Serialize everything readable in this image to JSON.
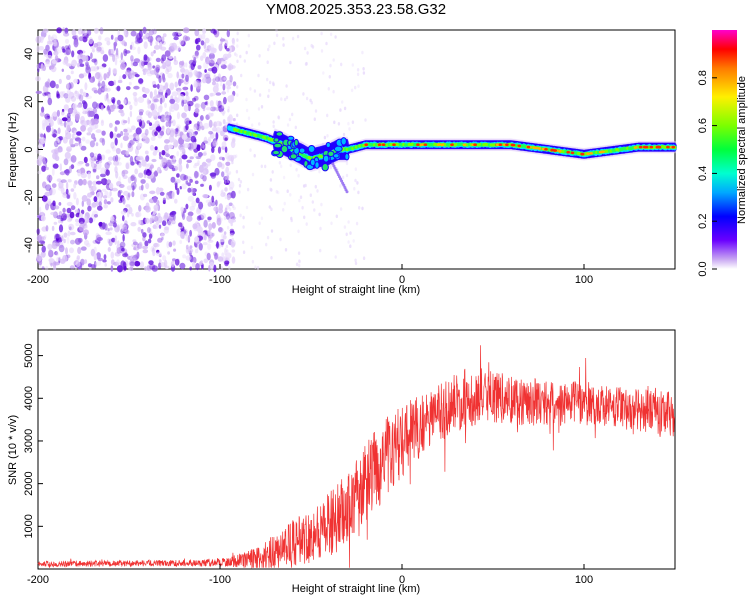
{
  "title": "YM08.2025.353.23.58.G32",
  "chart_data": [
    {
      "type": "heatmap",
      "name": "spectrogram",
      "xlabel": "Height of straight line (km)",
      "ylabel": "Frequency (Hz)",
      "xlim": [
        -200,
        150
      ],
      "ylim": [
        -50,
        50
      ],
      "xticks": [
        -200,
        -100,
        0,
        100
      ],
      "yticks": [
        -40,
        -20,
        0,
        20,
        40
      ],
      "tone": {
        "description_points_x": [
          -95,
          -85,
          -75,
          -65,
          -55,
          -50,
          -45,
          -40,
          -35,
          -30,
          -20,
          -10,
          0,
          10,
          20,
          30,
          40,
          50,
          60,
          70,
          80,
          90,
          100,
          110,
          120,
          130,
          140,
          150
        ],
        "description_points_y": [
          9,
          7,
          5,
          2,
          -2,
          -4,
          -3,
          -2,
          0,
          0,
          2,
          2,
          2,
          2,
          2,
          2,
          2,
          2,
          2,
          1,
          0,
          -1,
          -2,
          -1,
          0,
          1,
          1,
          1
        ]
      },
      "colorbar": {
        "label": "Normalized spectral amplitude",
        "ticks": [
          "0.0",
          "0.2",
          "0.4",
          "0.6",
          "0.8"
        ],
        "range": [
          0,
          1
        ]
      }
    },
    {
      "type": "line",
      "name": "snr",
      "xlabel": "Height of straight line (km)",
      "ylabel": "SNR (10 * v/v)",
      "xlim": [
        -200,
        150
      ],
      "ylim": [
        0,
        5600
      ],
      "xticks": [
        -200,
        -100,
        0,
        100
      ],
      "yticks": [
        1000,
        2000,
        3000,
        4000,
        5000
      ],
      "color": "#f03232",
      "envelope_x": [
        -200,
        -150,
        -110,
        -95,
        -85,
        -75,
        -65,
        -55,
        -45,
        -35,
        -25,
        -15,
        -5,
        5,
        15,
        25,
        35,
        45,
        55,
        65,
        75,
        85,
        95,
        105,
        115,
        125,
        135,
        145,
        150
      ],
      "envelope_mean": [
        120,
        130,
        140,
        170,
        220,
        300,
        500,
        700,
        900,
        1200,
        1700,
        2300,
        2800,
        3200,
        3500,
        3800,
        4000,
        4050,
        4000,
        3950,
        3900,
        3850,
        3900,
        3850,
        3800,
        3750,
        3700,
        3650,
        3600
      ],
      "envelope_amp": [
        70,
        70,
        80,
        120,
        200,
        350,
        500,
        600,
        700,
        800,
        900,
        1000,
        900,
        800,
        700,
        700,
        700,
        650,
        600,
        600,
        550,
        500,
        500,
        500,
        500,
        500,
        500,
        550,
        550
      ]
    }
  ]
}
